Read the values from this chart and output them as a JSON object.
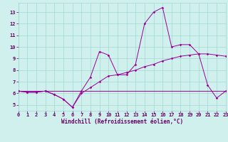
{
  "xlabel": "Windchill (Refroidissement éolien,°C)",
  "background_color": "#cff0ec",
  "grid_color": "#a0d8d0",
  "line_color": "#990099",
  "x_values": [
    0,
    1,
    2,
    3,
    4,
    5,
    6,
    7,
    8,
    9,
    10,
    11,
    12,
    13,
    14,
    15,
    16,
    17,
    18,
    19,
    20,
    21,
    22,
    23
  ],
  "line1": [
    6.2,
    6.1,
    6.1,
    6.2,
    5.9,
    5.5,
    4.8,
    6.2,
    7.4,
    9.6,
    9.3,
    7.6,
    7.6,
    8.5,
    12.0,
    13.0,
    13.4,
    10.0,
    10.2,
    10.2,
    9.4,
    6.7,
    5.6,
    6.2
  ],
  "line2": [
    6.2,
    6.1,
    6.1,
    6.2,
    5.9,
    5.5,
    4.8,
    6.0,
    6.5,
    7.0,
    7.5,
    7.6,
    7.8,
    8.0,
    8.3,
    8.5,
    8.8,
    9.0,
    9.2,
    9.3,
    9.4,
    9.4,
    9.3,
    9.2
  ],
  "line3": [
    6.2,
    6.2,
    6.2,
    6.2,
    6.2,
    6.2,
    6.2,
    6.2,
    6.2,
    6.2,
    6.2,
    6.2,
    6.2,
    6.2,
    6.2,
    6.2,
    6.2,
    6.2,
    6.2,
    6.2,
    6.2,
    6.2,
    6.2,
    6.2
  ],
  "ylim": [
    4.5,
    13.8
  ],
  "xlim": [
    0,
    23
  ],
  "yticks": [
    5,
    6,
    7,
    8,
    9,
    10,
    11,
    12,
    13
  ],
  "xticks": [
    0,
    1,
    2,
    3,
    4,
    5,
    6,
    7,
    8,
    9,
    10,
    11,
    12,
    13,
    14,
    15,
    16,
    17,
    18,
    19,
    20,
    21,
    22,
    23
  ],
  "tick_color": "#660066",
  "label_fontsize": 5.5,
  "tick_fontsize": 5.0
}
